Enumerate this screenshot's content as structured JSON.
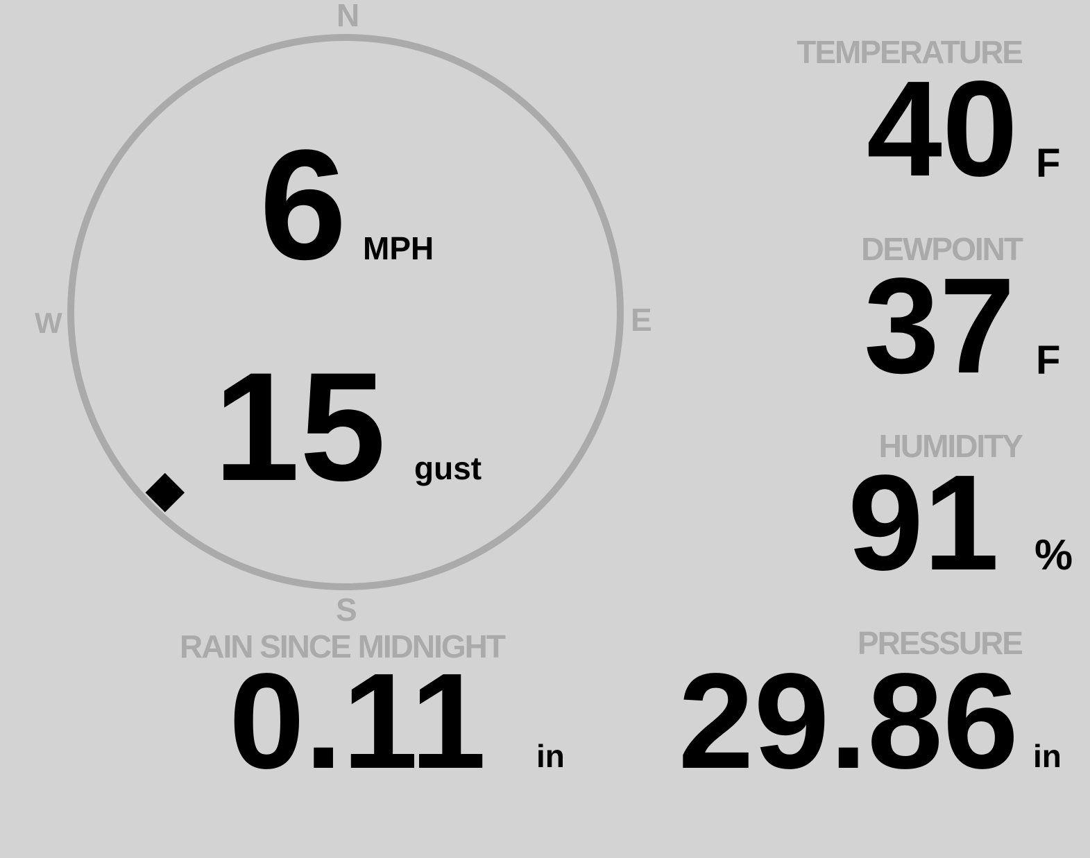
{
  "wind": {
    "speed": "6",
    "speed_unit": "MPH",
    "gust": "15",
    "gust_unit": "gust",
    "direction_degrees": 225,
    "compass": {
      "north": "N",
      "east": "E",
      "south": "S",
      "west": "W"
    }
  },
  "temperature": {
    "label": "TEMPERATURE",
    "value": "40",
    "unit": "F"
  },
  "dewpoint": {
    "label": "DEWPOINT",
    "value": "37",
    "unit": "F"
  },
  "humidity": {
    "label": "HUMIDITY",
    "value": "91",
    "unit": "%"
  },
  "rain": {
    "label": "RAIN SINCE MIDNIGHT",
    "value": "0.11",
    "unit": "in"
  },
  "pressure": {
    "label": "PRESSURE",
    "value": "29.86",
    "unit": "in"
  },
  "colors": {
    "background": "#d3d3d3",
    "label": "#aaaaaa",
    "value": "#000000"
  }
}
